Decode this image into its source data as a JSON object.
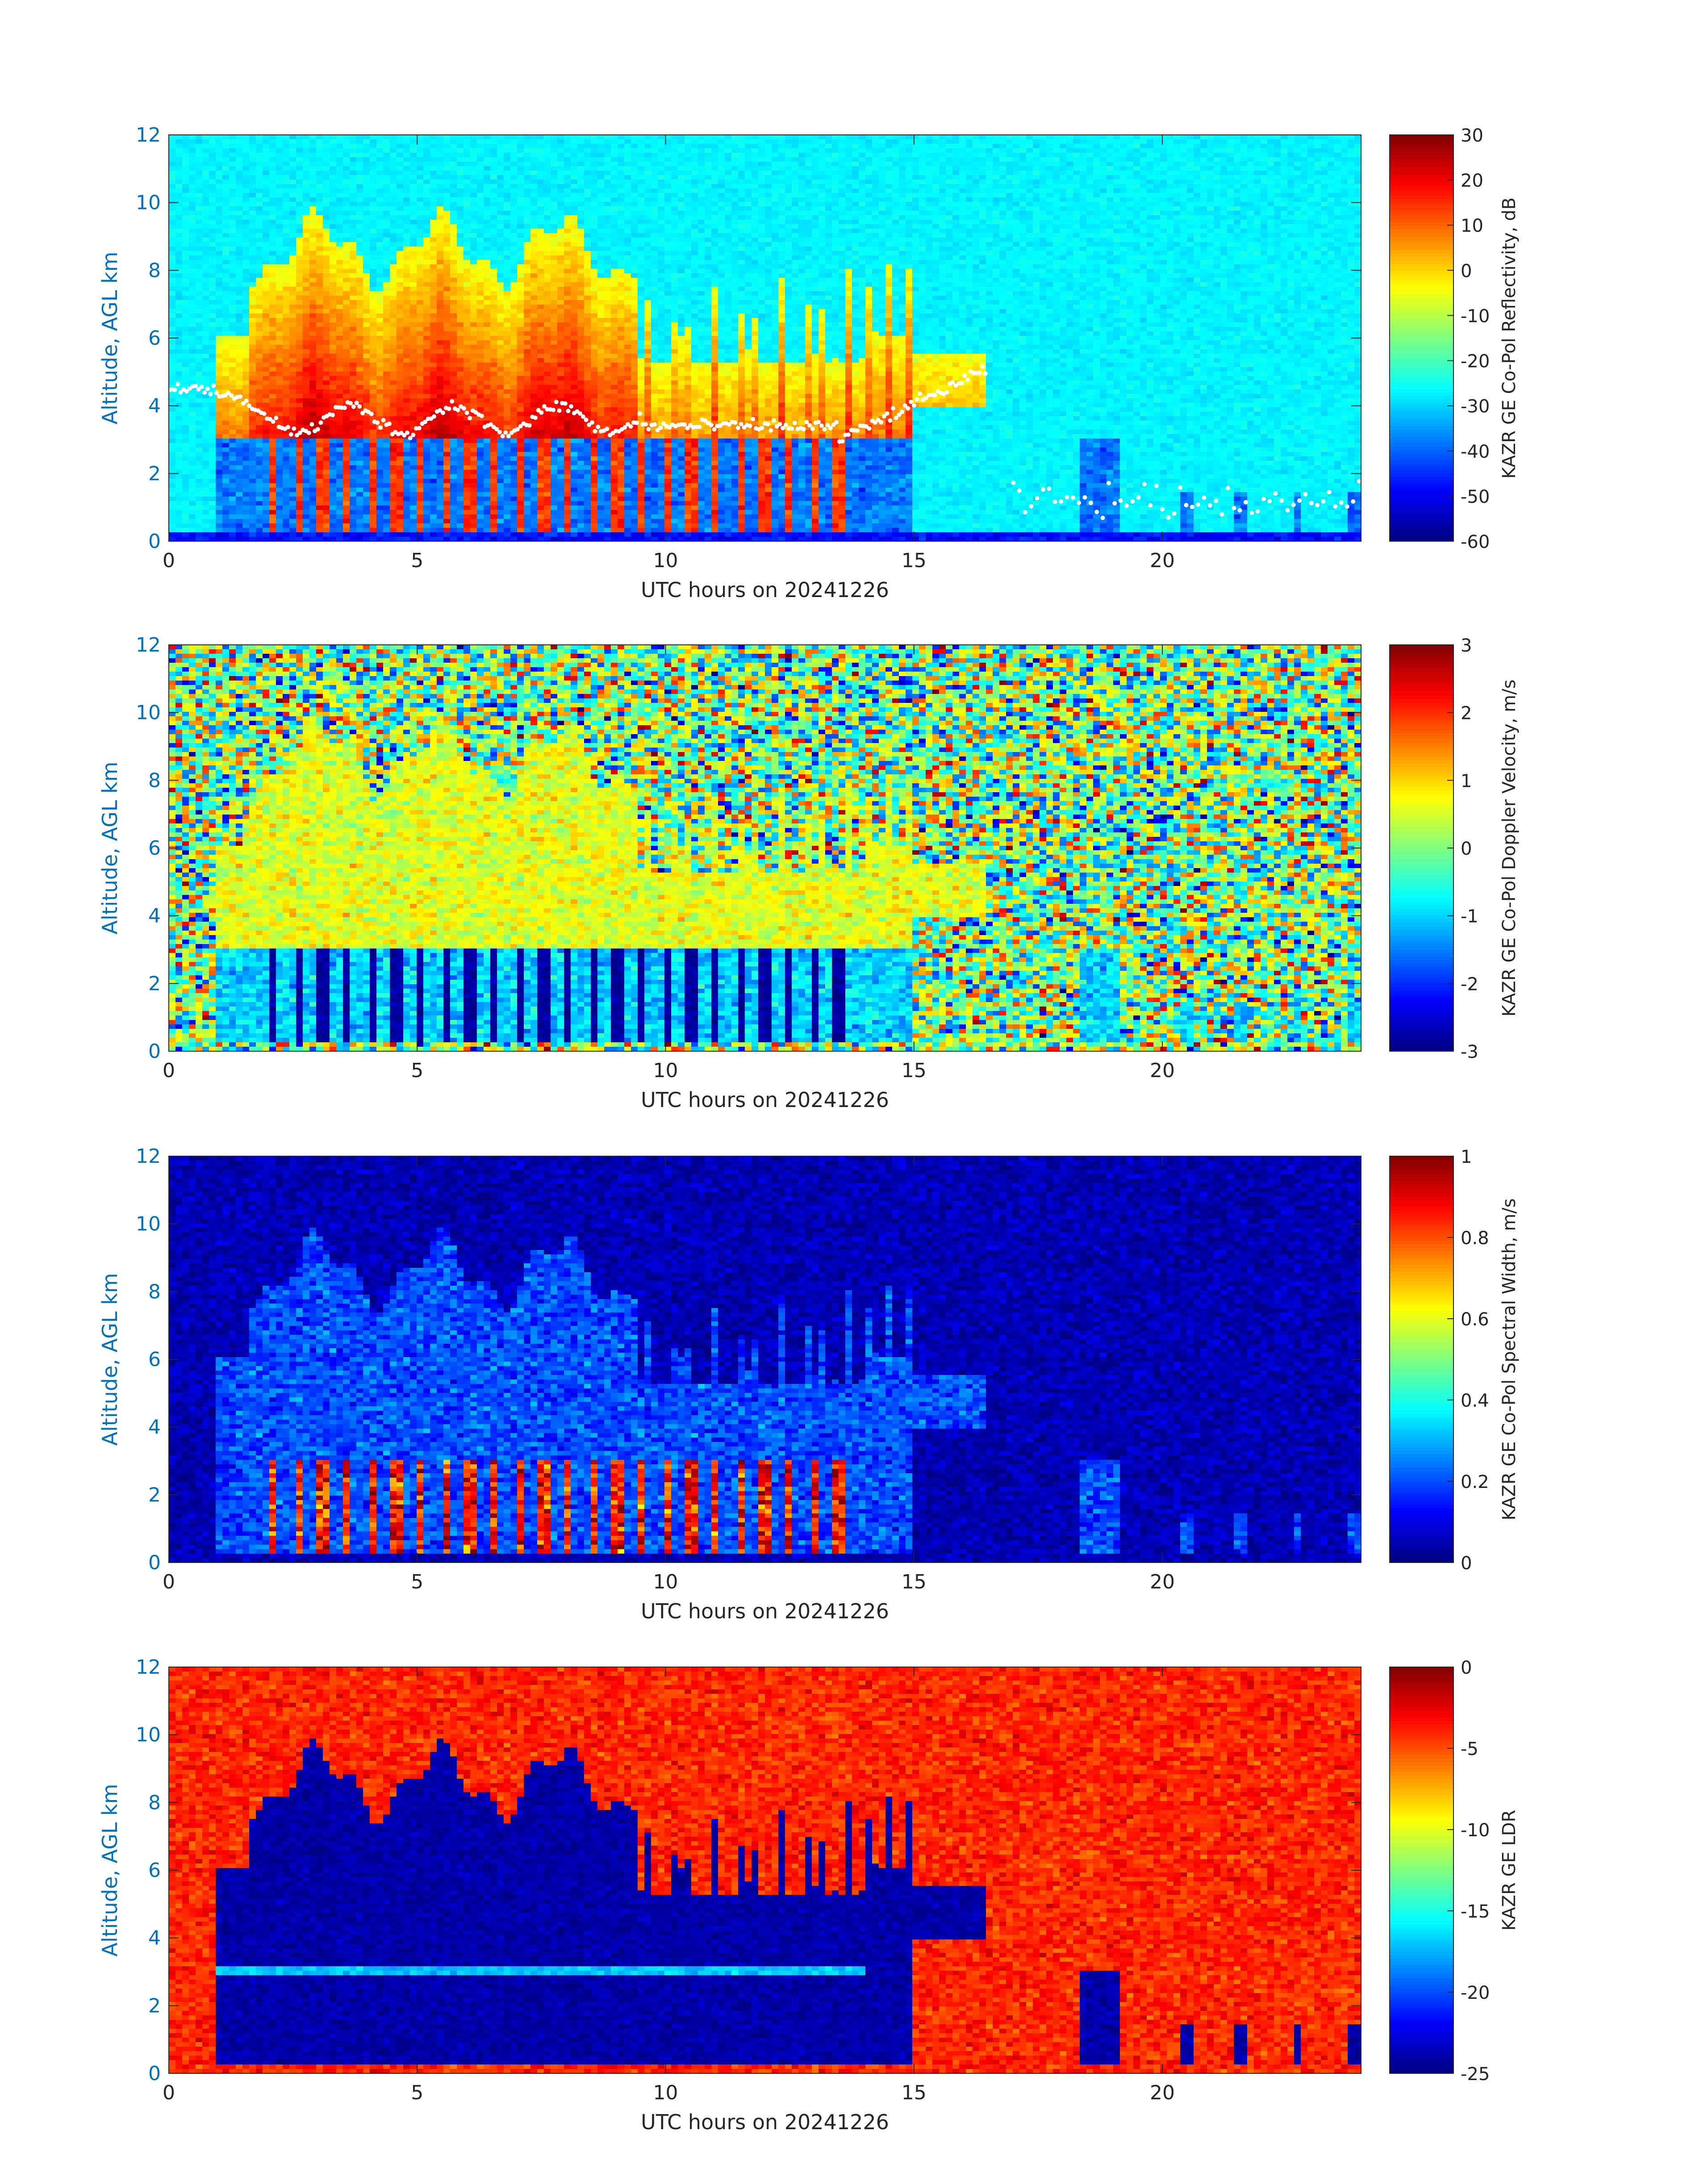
{
  "figure_colors": {
    "axis_text": "#0072BD",
    "label_text": "#262626",
    "frame": "#262626",
    "colormap": "jet"
  },
  "chart_data": [
    {
      "type": "heatmap",
      "field": "reflectivity",
      "xlabel": "UTC hours on 20241226",
      "ylabel": "Altitude, AGL km",
      "xlim": [
        0,
        24
      ],
      "ylim": [
        0,
        12
      ],
      "xticks": [
        "0",
        "5",
        "10",
        "15",
        "20"
      ],
      "yticks": [
        "0",
        "2",
        "4",
        "6",
        "8",
        "10",
        "12"
      ],
      "colorbar": {
        "label": "KAZR GE Co-Pol Reflectivity, dB",
        "range": [
          -60,
          30
        ],
        "ticks": [
          "30",
          "20",
          "10",
          "0",
          "-10",
          "-20",
          "-30",
          "-40",
          "-50",
          "-60"
        ]
      },
      "background_level": -27,
      "cloud_level": 12,
      "has_cloud_base_markers": true
    },
    {
      "type": "heatmap",
      "field": "velocity",
      "xlabel": "UTC hours on 20241226",
      "ylabel": "Altitude, AGL km",
      "xlim": [
        0,
        24
      ],
      "ylim": [
        0,
        12
      ],
      "xticks": [
        "0",
        "5",
        "10",
        "15",
        "20"
      ],
      "yticks": [
        "0",
        "2",
        "4",
        "6",
        "8",
        "10",
        "12"
      ],
      "colorbar": {
        "label": "KAZR GE Co-Pol Doppler Velocity, m/s",
        "range": [
          -3,
          3
        ],
        "ticks": [
          "3",
          "2",
          "1",
          "0",
          "-1",
          "-2",
          "-3"
        ]
      },
      "background_level": 0,
      "cloud_level": 0.6,
      "has_cloud_base_markers": false
    },
    {
      "type": "heatmap",
      "field": "width",
      "xlabel": "UTC hours on 20241226",
      "ylabel": "Altitude, AGL km",
      "xlim": [
        0,
        24
      ],
      "ylim": [
        0,
        12
      ],
      "xticks": [
        "0",
        "5",
        "10",
        "15",
        "20"
      ],
      "yticks": [
        "0",
        "2",
        "4",
        "6",
        "8",
        "10",
        "12"
      ],
      "colorbar": {
        "label": "KAZR GE Co-Pol Spectral Width, m/s",
        "range": [
          0,
          1
        ],
        "ticks": [
          "1",
          "0.8",
          "0.6",
          "0.4",
          "0.2",
          "0"
        ]
      },
      "background_level": 0.08,
      "cloud_level": 0.2,
      "has_cloud_base_markers": false
    },
    {
      "type": "heatmap",
      "field": "ldr",
      "xlabel": "UTC hours on 20241226",
      "ylabel": "Altitude, AGL km",
      "xlim": [
        0,
        24
      ],
      "ylim": [
        0,
        12
      ],
      "xticks": [
        "0",
        "5",
        "10",
        "15",
        "20"
      ],
      "yticks": [
        "0",
        "2",
        "4",
        "6",
        "8",
        "10",
        "12"
      ],
      "colorbar": {
        "label": "KAZR GE LDR",
        "range": [
          -25,
          0
        ],
        "ticks": [
          "0",
          "-5",
          "-10",
          "-15",
          "-20",
          "-25"
        ]
      },
      "background_level": -4,
      "cloud_level": -24,
      "has_cloud_base_markers": false
    }
  ]
}
